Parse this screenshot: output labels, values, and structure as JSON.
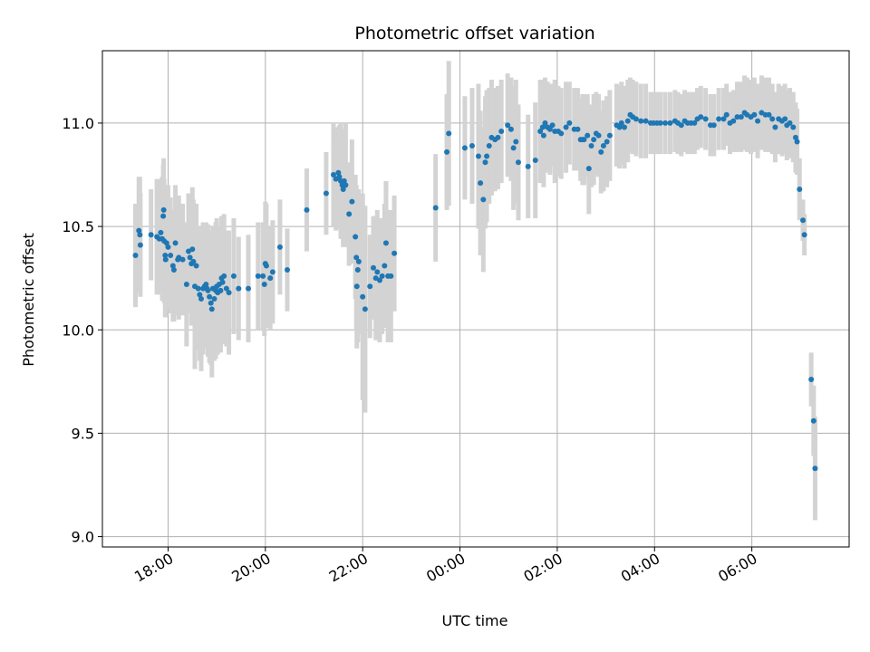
{
  "colors": {
    "point": "#1f77b4",
    "errorbar": "#d3d3d3",
    "grid": "#b0b0b0",
    "axis": "#000000"
  },
  "chart_data": {
    "type": "scatter",
    "title": "Photometric offset variation",
    "xlabel": "UTC time",
    "ylabel": "Photometric offset",
    "x_unit": "hours since 18:00 UTC",
    "xlim": [
      -1.35,
      14.0
    ],
    "ylim": [
      8.95,
      11.35
    ],
    "grid": true,
    "x_ticks": [
      {
        "value": 0,
        "label": "18:00"
      },
      {
        "value": 2,
        "label": "20:00"
      },
      {
        "value": 4,
        "label": "22:00"
      },
      {
        "value": 6,
        "label": "00:00"
      },
      {
        "value": 8,
        "label": "02:00"
      },
      {
        "value": 10,
        "label": "04:00"
      },
      {
        "value": 12,
        "label": "06:00"
      }
    ],
    "y_ticks": [
      {
        "value": 9.0,
        "label": "9.0"
      },
      {
        "value": 9.5,
        "label": "9.5"
      },
      {
        "value": 10.0,
        "label": "10.0"
      },
      {
        "value": 10.5,
        "label": "10.5"
      },
      {
        "value": 11.0,
        "label": "11.0"
      }
    ],
    "series": [
      {
        "name": "offset",
        "columns": [
          "x",
          "y",
          "err"
        ],
        "points": [
          [
            -0.67,
            10.36,
            0.25
          ],
          [
            -0.6,
            10.48,
            0.26
          ],
          [
            -0.58,
            10.46,
            0.28
          ],
          [
            -0.57,
            10.41,
            0.25
          ],
          [
            -0.35,
            10.46,
            0.22
          ],
          [
            -0.23,
            10.45,
            0.28
          ],
          [
            -0.18,
            10.44,
            0.27
          ],
          [
            -0.15,
            10.47,
            0.26
          ],
          [
            -0.12,
            10.44,
            0.3
          ],
          [
            -0.1,
            10.55,
            0.25
          ],
          [
            -0.09,
            10.58,
            0.25
          ],
          [
            -0.08,
            10.43,
            0.3
          ],
          [
            -0.06,
            10.36,
            0.3
          ],
          [
            -0.05,
            10.34,
            0.27
          ],
          [
            -0.03,
            10.42,
            0.25
          ],
          [
            0.0,
            10.4,
            0.3
          ],
          [
            0.05,
            10.36,
            0.28
          ],
          [
            0.1,
            10.31,
            0.27
          ],
          [
            0.12,
            10.29,
            0.25
          ],
          [
            0.15,
            10.42,
            0.28
          ],
          [
            0.2,
            10.34,
            0.27
          ],
          [
            0.22,
            10.35,
            0.3
          ],
          [
            0.3,
            10.34,
            0.27
          ],
          [
            0.38,
            10.22,
            0.3
          ],
          [
            0.42,
            10.38,
            0.28
          ],
          [
            0.45,
            10.35,
            0.27
          ],
          [
            0.48,
            10.32,
            0.3
          ],
          [
            0.5,
            10.39,
            0.3
          ],
          [
            0.52,
            10.33,
            0.3
          ],
          [
            0.55,
            10.21,
            0.4
          ],
          [
            0.58,
            10.31,
            0.3
          ],
          [
            0.62,
            10.2,
            0.3
          ],
          [
            0.65,
            10.17,
            0.32
          ],
          [
            0.68,
            10.15,
            0.35
          ],
          [
            0.72,
            10.2,
            0.32
          ],
          [
            0.75,
            10.21,
            0.3
          ],
          [
            0.78,
            10.22,
            0.3
          ],
          [
            0.8,
            10.2,
            0.25
          ],
          [
            0.82,
            10.19,
            0.32
          ],
          [
            0.85,
            10.16,
            0.32
          ],
          [
            0.88,
            10.13,
            0.3
          ],
          [
            0.9,
            10.1,
            0.33
          ],
          [
            0.92,
            10.2,
            0.3
          ],
          [
            0.95,
            10.15,
            0.3
          ],
          [
            0.98,
            10.19,
            0.33
          ],
          [
            1.0,
            10.21,
            0.33
          ],
          [
            1.02,
            10.18,
            0.3
          ],
          [
            1.05,
            10.22,
            0.28
          ],
          [
            1.08,
            10.19,
            0.3
          ],
          [
            1.1,
            10.25,
            0.3
          ],
          [
            1.12,
            10.23,
            0.3
          ],
          [
            1.15,
            10.26,
            0.3
          ],
          [
            1.2,
            10.2,
            0.28
          ],
          [
            1.25,
            10.18,
            0.3
          ],
          [
            1.35,
            10.26,
            0.28
          ],
          [
            1.45,
            10.2,
            0.25
          ],
          [
            1.65,
            10.2,
            0.26
          ],
          [
            1.85,
            10.26,
            0.26
          ],
          [
            1.95,
            10.26,
            0.26
          ],
          [
            1.98,
            10.22,
            0.25
          ],
          [
            2.0,
            10.32,
            0.3
          ],
          [
            2.02,
            10.31,
            0.3
          ],
          [
            2.1,
            10.25,
            0.25
          ],
          [
            2.15,
            10.28,
            0.25
          ],
          [
            2.3,
            10.4,
            0.23
          ],
          [
            2.45,
            10.29,
            0.2
          ],
          [
            2.85,
            10.58,
            0.2
          ],
          [
            3.25,
            10.66,
            0.2
          ],
          [
            3.4,
            10.75,
            0.25
          ],
          [
            3.45,
            10.73,
            0.25
          ],
          [
            3.5,
            10.76,
            0.22
          ],
          [
            3.52,
            10.74,
            0.25
          ],
          [
            3.55,
            10.72,
            0.28
          ],
          [
            3.58,
            10.7,
            0.25
          ],
          [
            3.6,
            10.68,
            0.28
          ],
          [
            3.62,
            10.72,
            0.25
          ],
          [
            3.65,
            10.7,
            0.3
          ],
          [
            3.72,
            10.56,
            0.25
          ],
          [
            3.78,
            10.62,
            0.3
          ],
          [
            3.85,
            10.45,
            0.3
          ],
          [
            3.87,
            10.35,
            0.35
          ],
          [
            3.88,
            10.21,
            0.3
          ],
          [
            3.9,
            10.29,
            0.35
          ],
          [
            3.92,
            10.33,
            0.35
          ],
          [
            4.0,
            10.16,
            0.5
          ],
          [
            4.05,
            10.1,
            0.5
          ],
          [
            4.15,
            10.21,
            0.25
          ],
          [
            4.22,
            10.3,
            0.25
          ],
          [
            4.27,
            10.25,
            0.3
          ],
          [
            4.3,
            10.28,
            0.3
          ],
          [
            4.35,
            10.24,
            0.3
          ],
          [
            4.4,
            10.26,
            0.28
          ],
          [
            4.45,
            10.31,
            0.3
          ],
          [
            4.48,
            10.42,
            0.3
          ],
          [
            4.52,
            10.26,
            0.32
          ],
          [
            4.58,
            10.26,
            0.32
          ],
          [
            4.65,
            10.37,
            0.28
          ],
          [
            5.5,
            10.59,
            0.26
          ],
          [
            5.73,
            10.86,
            0.28
          ],
          [
            5.77,
            10.95,
            0.35
          ],
          [
            6.1,
            10.88,
            0.25
          ],
          [
            6.25,
            10.89,
            0.28
          ],
          [
            6.38,
            10.84,
            0.35
          ],
          [
            6.42,
            10.71,
            0.35
          ],
          [
            6.48,
            10.63,
            0.35
          ],
          [
            6.52,
            10.81,
            0.32
          ],
          [
            6.55,
            10.84,
            0.32
          ],
          [
            6.6,
            10.89,
            0.28
          ],
          [
            6.65,
            10.93,
            0.28
          ],
          [
            6.72,
            10.92,
            0.25
          ],
          [
            6.78,
            10.93,
            0.25
          ],
          [
            6.85,
            10.96,
            0.25
          ],
          [
            6.98,
            10.99,
            0.25
          ],
          [
            7.05,
            10.97,
            0.25
          ],
          [
            7.1,
            10.88,
            0.3
          ],
          [
            7.15,
            10.91,
            0.3
          ],
          [
            7.2,
            10.81,
            0.28
          ],
          [
            7.4,
            10.79,
            0.25
          ],
          [
            7.55,
            10.82,
            0.28
          ],
          [
            7.65,
            10.96,
            0.25
          ],
          [
            7.7,
            10.98,
            0.23
          ],
          [
            7.72,
            10.94,
            0.25
          ],
          [
            7.75,
            11.0,
            0.22
          ],
          [
            7.8,
            10.98,
            0.22
          ],
          [
            7.85,
            10.97,
            0.22
          ],
          [
            7.9,
            10.99,
            0.2
          ],
          [
            7.95,
            10.96,
            0.25
          ],
          [
            8.02,
            10.96,
            0.22
          ],
          [
            8.08,
            10.95,
            0.22
          ],
          [
            8.18,
            10.98,
            0.22
          ],
          [
            8.25,
            11.0,
            0.2
          ],
          [
            8.35,
            10.97,
            0.2
          ],
          [
            8.42,
            10.97,
            0.2
          ],
          [
            8.48,
            10.92,
            0.2
          ],
          [
            8.52,
            10.92,
            0.22
          ],
          [
            8.55,
            10.92,
            0.22
          ],
          [
            8.62,
            10.94,
            0.2
          ],
          [
            8.65,
            10.78,
            0.22
          ],
          [
            8.7,
            10.89,
            0.2
          ],
          [
            8.75,
            10.92,
            0.22
          ],
          [
            8.8,
            10.95,
            0.2
          ],
          [
            8.85,
            10.94,
            0.2
          ],
          [
            8.9,
            10.86,
            0.2
          ],
          [
            8.95,
            10.89,
            0.22
          ],
          [
            9.02,
            10.91,
            0.22
          ],
          [
            9.08,
            10.94,
            0.22
          ],
          [
            9.22,
            10.99,
            0.2
          ],
          [
            9.28,
            10.98,
            0.2
          ],
          [
            9.32,
            11.0,
            0.2
          ],
          [
            9.38,
            10.98,
            0.2
          ],
          [
            9.45,
            11.01,
            0.2
          ],
          [
            9.5,
            11.04,
            0.18
          ],
          [
            9.55,
            11.03,
            0.18
          ],
          [
            9.62,
            11.02,
            0.18
          ],
          [
            9.72,
            11.01,
            0.18
          ],
          [
            9.82,
            11.01,
            0.18
          ],
          [
            9.92,
            11.0,
            0.15
          ],
          [
            9.98,
            11.0,
            0.15
          ],
          [
            10.05,
            11.0,
            0.15
          ],
          [
            10.12,
            11.0,
            0.15
          ],
          [
            10.22,
            11.0,
            0.15
          ],
          [
            10.32,
            11.0,
            0.15
          ],
          [
            10.42,
            11.01,
            0.15
          ],
          [
            10.48,
            11.0,
            0.15
          ],
          [
            10.55,
            10.99,
            0.15
          ],
          [
            10.62,
            11.01,
            0.15
          ],
          [
            10.68,
            11.0,
            0.15
          ],
          [
            10.75,
            11.0,
            0.15
          ],
          [
            10.82,
            11.0,
            0.15
          ],
          [
            10.88,
            11.02,
            0.15
          ],
          [
            10.95,
            11.03,
            0.15
          ],
          [
            11.05,
            11.02,
            0.15
          ],
          [
            11.15,
            10.99,
            0.15
          ],
          [
            11.22,
            10.99,
            0.15
          ],
          [
            11.32,
            11.02,
            0.15
          ],
          [
            11.42,
            11.02,
            0.15
          ],
          [
            11.48,
            11.04,
            0.15
          ],
          [
            11.55,
            11.0,
            0.15
          ],
          [
            11.62,
            11.01,
            0.15
          ],
          [
            11.7,
            11.03,
            0.17
          ],
          [
            11.78,
            11.03,
            0.17
          ],
          [
            11.85,
            11.05,
            0.18
          ],
          [
            11.9,
            11.04,
            0.18
          ],
          [
            11.98,
            11.03,
            0.18
          ],
          [
            12.05,
            11.04,
            0.18
          ],
          [
            12.12,
            11.01,
            0.18
          ],
          [
            12.2,
            11.05,
            0.18
          ],
          [
            12.28,
            11.04,
            0.18
          ],
          [
            12.35,
            11.04,
            0.18
          ],
          [
            12.42,
            11.02,
            0.17
          ],
          [
            12.48,
            10.98,
            0.17
          ],
          [
            12.55,
            11.02,
            0.17
          ],
          [
            12.62,
            11.01,
            0.17
          ],
          [
            12.68,
            11.02,
            0.17
          ],
          [
            12.72,
            10.99,
            0.17
          ],
          [
            12.78,
            11.0,
            0.17
          ],
          [
            12.85,
            10.98,
            0.17
          ],
          [
            12.9,
            10.93,
            0.17
          ],
          [
            12.93,
            10.91,
            0.16
          ],
          [
            12.98,
            10.68,
            0.15
          ],
          [
            13.05,
            10.53,
            0.1
          ],
          [
            13.08,
            10.46,
            0.1
          ],
          [
            13.22,
            9.76,
            0.13
          ],
          [
            13.27,
            9.56,
            0.17
          ],
          [
            13.3,
            9.33,
            0.25
          ]
        ]
      }
    ]
  }
}
